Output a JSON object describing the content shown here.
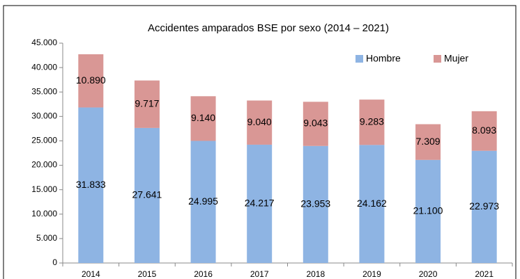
{
  "chart_data": {
    "type": "stacked_bar",
    "title": "Accidentes amparados BSE por sexo (2014 – 2021)",
    "categories": [
      "2014",
      "2015",
      "2016",
      "2017",
      "2018",
      "2019",
      "2020",
      "2021"
    ],
    "series": [
      {
        "name": "Hombre",
        "color": "#8eb4e3",
        "values": [
          31833,
          27641,
          24995,
          24217,
          23953,
          24162,
          21100,
          22973
        ],
        "value_labels": [
          "31.833",
          "27.641",
          "24.995",
          "24.217",
          "23.953",
          "24.162",
          "21.100",
          "22.973"
        ]
      },
      {
        "name": "Mujer",
        "color": "#d99795",
        "values": [
          10890,
          9717,
          9140,
          9040,
          9043,
          9283,
          7309,
          8093
        ],
        "value_labels": [
          "10.890",
          "9.717",
          "9.140",
          "9.040",
          "9.043",
          "9.283",
          "7.309",
          "8.093"
        ]
      }
    ],
    "ylim": [
      0,
      45000
    ],
    "yticks": [
      0,
      {
        "value": 5000,
        "label": "5.000"
      },
      {
        "value": 10000,
        "label": "10.000"
      },
      {
        "value": 15000,
        "label": "15.000"
      },
      {
        "value": 20000,
        "label": "20.000"
      },
      {
        "value": 25000,
        "label": "25.000"
      },
      {
        "value": 30000,
        "label": "30.000"
      },
      {
        "value": 35000,
        "label": "35.000"
      },
      {
        "value": 40000,
        "label": "40.000"
      },
      {
        "value": 45000,
        "label": "45.000"
      }
    ],
    "legend": "top-right"
  }
}
